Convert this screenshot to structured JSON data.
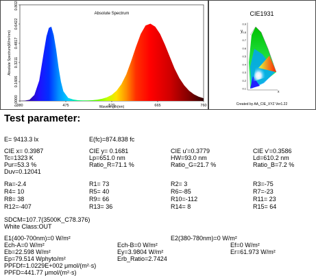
{
  "chart_data": {
    "type": "area",
    "title": "Absolute Spectrum",
    "xlabel": "Wavelength(nm)",
    "ylabel": "Absolute Spectrum(W/m²/nm)",
    "x_ticks": [
      380,
      475,
      570,
      665,
      760
    ],
    "y_ticks": [
      "0.0000",
      "0.1606",
      "0.3211",
      "0.4817",
      "0.6422",
      "0.8028"
    ],
    "xlim": [
      380,
      760
    ],
    "ylim": [
      0,
      0.8028
    ],
    "grid": false,
    "x": [
      380,
      390,
      400,
      410,
      420,
      430,
      435,
      440,
      445,
      450,
      455,
      460,
      465,
      470,
      480,
      490,
      500,
      510,
      520,
      530,
      540,
      550,
      560,
      570,
      580,
      590,
      600,
      610,
      620,
      630,
      640,
      650,
      660,
      670,
      680,
      690,
      700,
      710,
      720,
      730,
      740,
      750,
      760
    ],
    "values": [
      0.0,
      0.002,
      0.01,
      0.05,
      0.17,
      0.42,
      0.54,
      0.61,
      0.62,
      0.55,
      0.43,
      0.28,
      0.16,
      0.08,
      0.025,
      0.012,
      0.006,
      0.004,
      0.004,
      0.006,
      0.01,
      0.018,
      0.03,
      0.05,
      0.085,
      0.14,
      0.22,
      0.33,
      0.45,
      0.56,
      0.63,
      0.645,
      0.62,
      0.56,
      0.47,
      0.37,
      0.27,
      0.19,
      0.13,
      0.085,
      0.055,
      0.035,
      0.022
    ]
  },
  "cie": {
    "title": "CIE1931",
    "y_axis_label": "y",
    "x_axis_label": "x",
    "ticks": [
      "0.9",
      "0.8",
      "0.7",
      "0.6",
      "0.5",
      "0.4",
      "0.3",
      "0.2",
      "0.1"
    ],
    "credit": "Created by AA_CIE_XYZ Ver1.22"
  },
  "params": {
    "heading": "Test parameter:",
    "E": "E=  9413.3 lx",
    "Efc": "E(fc)=874.838 fc",
    "ciex": "CIE x= 0.3987",
    "ciey": "CIE y= 0.1681",
    "cieu": "CIE u'=0.3779",
    "ciev": "CIE v'=0.3586",
    "tc": "Tc=1323 K",
    "lp": "Lp=651.0 nm",
    "hw": "HW=93.0 nm",
    "ld": "Ld=610.2 nm",
    "pur": "Pur=53.3 %",
    "ratio_r": "Ratio_R=71.1 %",
    "ratio_g": "Ratio_G=21.7 %",
    "ratio_b": "Ratio_B=7.2 %",
    "duv": "Duv=0.12041",
    "ra": "Ra=-2.4",
    "r1": "R1= 73",
    "r2": "R2=  3",
    "r3": "R3=-75",
    "r4": "R4= 10",
    "r5": "R5= 40",
    "r6": "R6=-85",
    "r7": "R7=-23",
    "r8": "R8= 38",
    "r9": "R9= 66",
    "r10": "R10=-112",
    "r11": "R11= 23",
    "r12": "R12=-407",
    "r13": "R13= 36",
    "r14": "R14=  8",
    "r15": "R15= 64",
    "sdcm": "SDCM=107.7(3500K_C78.376)",
    "white_class": "White Class:OUT",
    "e1": "E1(400-700nm)=0 W/m²",
    "e2": "E2(380-780nm)=0 W/m²",
    "ech_a": "Ech-A=0 W/m²",
    "ech_b": "Ech-B=0 W/m²",
    "ef": "Ef=0 W/m²",
    "eb": "Eb=22.598 W/m²",
    "ey": "Ey=3.9804 W/m²",
    "er": "Er=61.973 W/m²",
    "ep": "Ep=79.514 Wphyto/m²",
    "erb": "Erb_Ratio=2.7424",
    "ppfdf": "PPFDf=1.0229E+002 μmol/(m²·s)",
    "ppfd": "PPFD=441.77 μmol/(m²·s)"
  }
}
